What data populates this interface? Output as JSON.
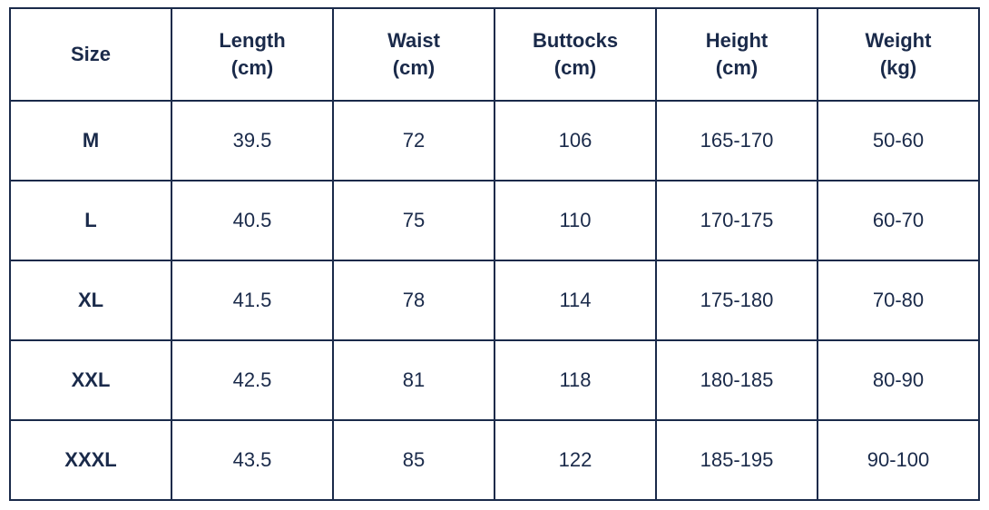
{
  "table": {
    "border_color": "#1a2a4a",
    "text_color": "#1a2a4a",
    "background_color": "#ffffff",
    "header_fontsize": 22,
    "cell_fontsize": 22,
    "columns": [
      {
        "line1": "Size",
        "line2": ""
      },
      {
        "line1": "Length",
        "line2": "(cm)"
      },
      {
        "line1": "Waist",
        "line2": "(cm)"
      },
      {
        "line1": "Buttocks",
        "line2": "(cm)"
      },
      {
        "line1": "Height",
        "line2": "(cm)"
      },
      {
        "line1": "Weight",
        "line2": "(kg)"
      }
    ],
    "rows": [
      {
        "size": "M",
        "length": "39.5",
        "waist": "72",
        "buttocks": "106",
        "height": "165-170",
        "weight": "50-60"
      },
      {
        "size": "L",
        "length": "40.5",
        "waist": "75",
        "buttocks": "110",
        "height": "170-175",
        "weight": "60-70"
      },
      {
        "size": "XL",
        "length": "41.5",
        "waist": "78",
        "buttocks": "114",
        "height": "175-180",
        "weight": "70-80"
      },
      {
        "size": "XXL",
        "length": "42.5",
        "waist": "81",
        "buttocks": "118",
        "height": "180-185",
        "weight": "80-90"
      },
      {
        "size": "XXXL",
        "length": "43.5",
        "waist": "85",
        "buttocks": "122",
        "height": "185-195",
        "weight": "90-100"
      }
    ]
  }
}
